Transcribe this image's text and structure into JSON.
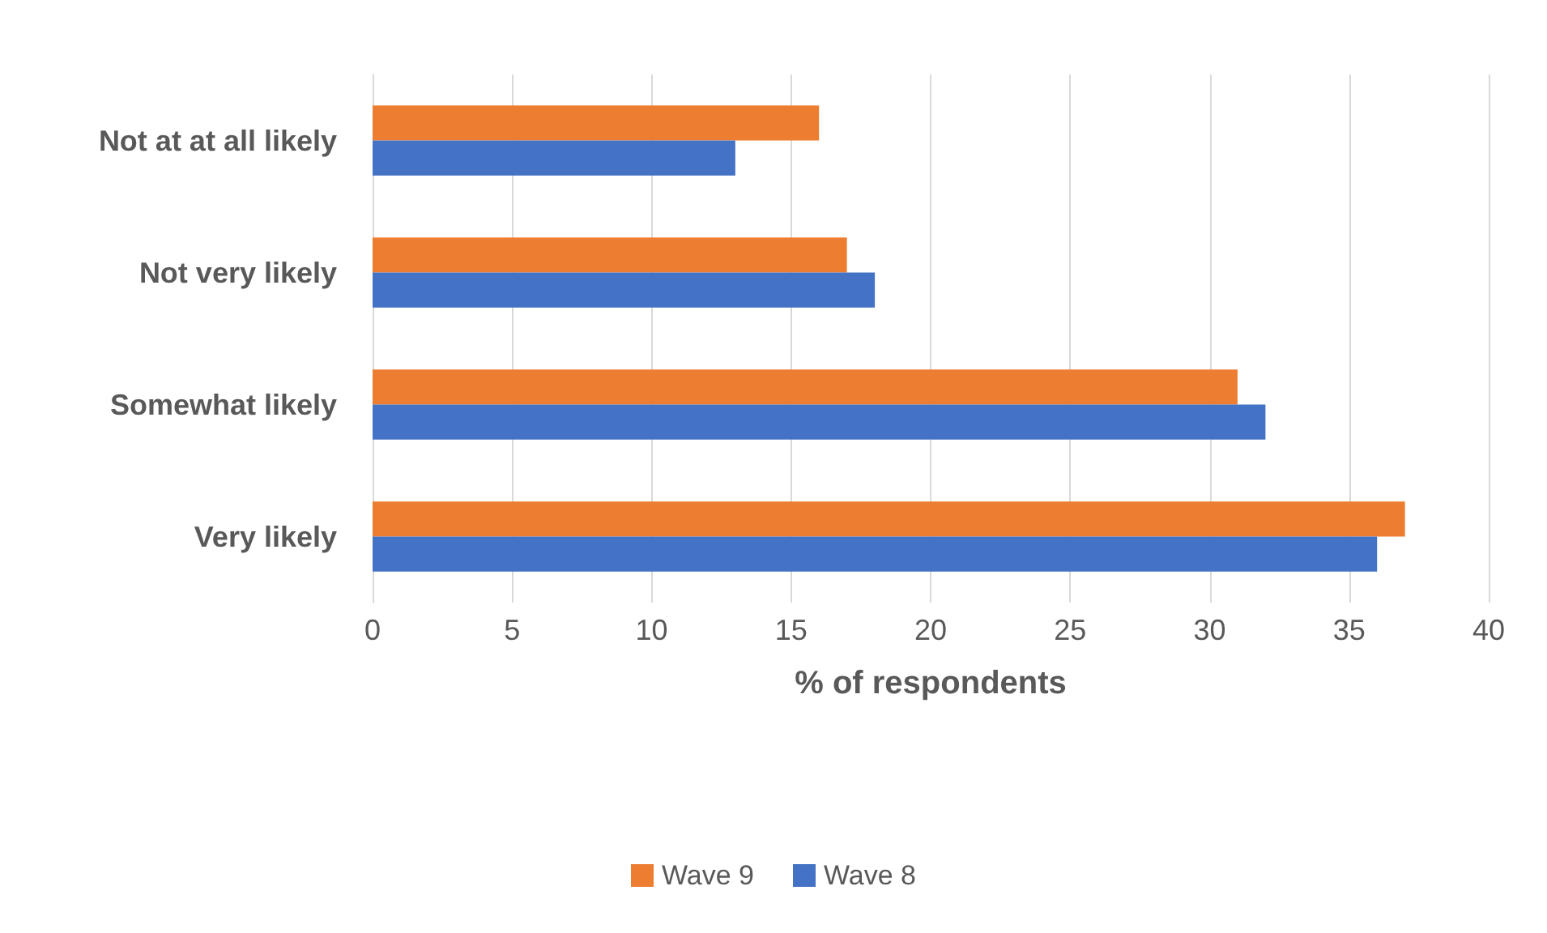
{
  "chart_data": {
    "type": "bar",
    "orientation": "horizontal",
    "xlabel": "% of respondents",
    "categories": [
      "Not at at all likely",
      "Not very likely",
      "Somewhat likely",
      "Very likely"
    ],
    "series": [
      {
        "name": "Wave 9",
        "color": "#ed7d31",
        "values": [
          16,
          17,
          31,
          37
        ]
      },
      {
        "name": "Wave 8",
        "color": "#4472c4",
        "values": [
          13,
          18,
          32,
          36
        ]
      }
    ],
    "xlim": [
      0,
      40
    ],
    "xticks": [
      0,
      5,
      10,
      15,
      20,
      25,
      30,
      35,
      40
    ],
    "grid": "x",
    "legend": "bottom"
  }
}
